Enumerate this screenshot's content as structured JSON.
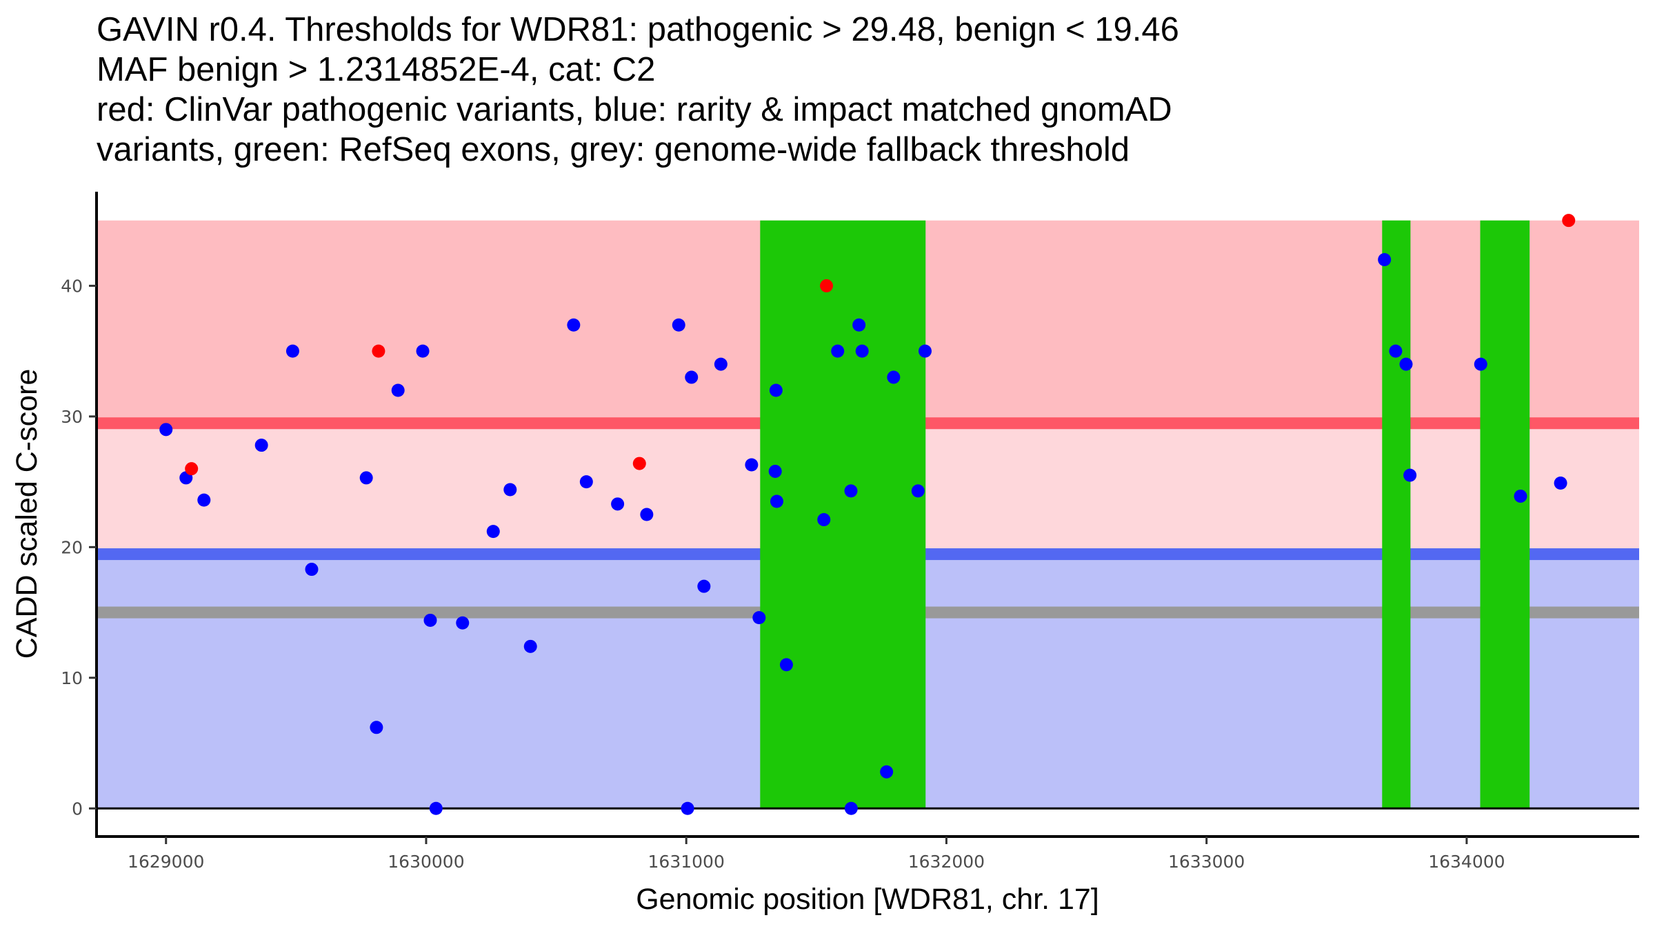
{
  "chart_data": {
    "type": "scatter",
    "title_lines": [
      "GAVIN r0.4. Thresholds for WDR81: pathogenic > 29.48, benign < 19.46",
      "MAF benign > 1.2314852E-4, cat: C2",
      "red: ClinVar pathogenic variants, blue: rarity & impact matched gnomAD",
      "variants, green: RefSeq exons, grey: genome-wide fallback threshold"
    ],
    "xlabel": "Genomic position [WDR81, chr. 17]",
    "ylabel": "CADD scaled C-score",
    "xlim": [
      1628733,
      1634663
    ],
    "ylim": [
      -2.15,
      47.2
    ],
    "x_ticks": [
      1629000,
      1630000,
      1631000,
      1632000,
      1633000,
      1634000
    ],
    "x_tick_labels": [
      "1629000",
      "1630000",
      "1631000",
      "1632000",
      "1633000",
      "1634000"
    ],
    "y_ticks": [
      0,
      10,
      20,
      30,
      40
    ],
    "y_tick_labels": [
      "0",
      "10",
      "20",
      "30",
      "40"
    ],
    "grid": false,
    "thresholds": {
      "pathogenic": 29.48,
      "benign": 19.46,
      "genome_wide_fallback": 15.0,
      "band_max": 45
    },
    "regions": [
      {
        "name": "pathogenic-zone",
        "from": 29.48,
        "to": 45,
        "color": "#FEBCC1"
      },
      {
        "name": "uncertain-zone",
        "from": 19.46,
        "to": 29.48,
        "color": "#FED7DB"
      },
      {
        "name": "benign-zone",
        "from": 0,
        "to": 19.46,
        "color": "#BBC0F9"
      }
    ],
    "threshold_lines": [
      {
        "name": "pathogenic-threshold-line",
        "value": 29.48,
        "color": "#FE5766"
      },
      {
        "name": "benign-threshold-line",
        "value": 19.46,
        "color": "#5368F2"
      },
      {
        "name": "fallback-threshold-line",
        "value": 15.0,
        "color": "#999999"
      }
    ],
    "exons": {
      "color": "#1CC807",
      "ranges": [
        [
          1631284,
          1631920
        ],
        [
          1633675,
          1633784
        ],
        [
          1634052,
          1634242
        ]
      ]
    },
    "series": [
      {
        "name": "rarity & impact matched gnomAD variants",
        "color": "#0000FF",
        "points": [
          [
            1629000,
            29.0
          ],
          [
            1629077,
            25.3
          ],
          [
            1629146,
            23.6
          ],
          [
            1629367,
            27.8
          ],
          [
            1629487,
            35.0
          ],
          [
            1629560,
            18.3
          ],
          [
            1629770,
            25.3
          ],
          [
            1629809,
            6.2
          ],
          [
            1629892,
            32.0
          ],
          [
            1629987,
            35.0
          ],
          [
            1630016,
            14.4
          ],
          [
            1630038,
            0.0
          ],
          [
            1630140,
            14.2
          ],
          [
            1630258,
            21.2
          ],
          [
            1630323,
            24.4
          ],
          [
            1630401,
            12.4
          ],
          [
            1630567,
            37.0
          ],
          [
            1630616,
            25.0
          ],
          [
            1630736,
            23.3
          ],
          [
            1630848,
            22.5
          ],
          [
            1630971,
            37.0
          ],
          [
            1631005,
            0.0
          ],
          [
            1631020,
            33.0
          ],
          [
            1631068,
            17.0
          ],
          [
            1631133,
            34.0
          ],
          [
            1631251,
            26.3
          ],
          [
            1631280,
            14.6
          ],
          [
            1631342,
            25.8
          ],
          [
            1631345,
            32.0
          ],
          [
            1631348,
            23.5
          ],
          [
            1631385,
            11.0
          ],
          [
            1631529,
            22.1
          ],
          [
            1631582,
            35.0
          ],
          [
            1631633,
            24.3
          ],
          [
            1631634,
            0.0
          ],
          [
            1631664,
            37.0
          ],
          [
            1631676,
            35.0
          ],
          [
            1631770,
            2.8
          ],
          [
            1631797,
            33.0
          ],
          [
            1631891,
            24.3
          ],
          [
            1631918,
            35.0
          ],
          [
            1633684,
            42.0
          ],
          [
            1633727,
            35.0
          ],
          [
            1633767,
            34.0
          ],
          [
            1633782,
            25.5
          ],
          [
            1634054,
            34.0
          ],
          [
            1634207,
            23.9
          ],
          [
            1634361,
            24.9
          ]
        ]
      },
      {
        "name": "ClinVar pathogenic variants",
        "color": "#FF0000",
        "points": [
          [
            1629098,
            26.0
          ],
          [
            1629817,
            35.0
          ],
          [
            1630820,
            26.4
          ],
          [
            1631539,
            40.0
          ],
          [
            1634392,
            45.0
          ]
        ]
      }
    ]
  }
}
